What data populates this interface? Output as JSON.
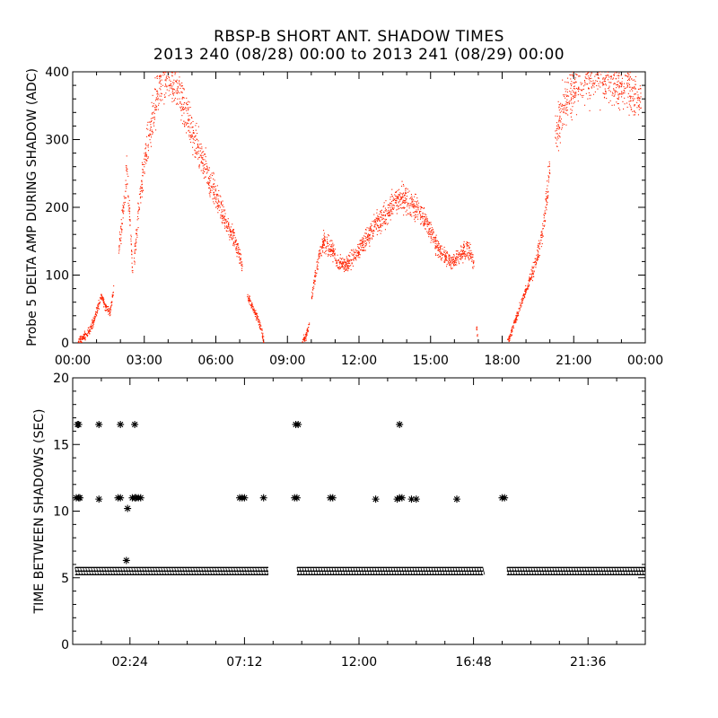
{
  "header": {
    "title": "RBSP-B SHORT ANT. SHADOW TIMES",
    "subtitle": "2013 240 (08/28) 00:00 to 2013 241 (08/29) 00:00"
  },
  "chart_data": [
    {
      "type": "scatter",
      "ylabel": "Probe 5 DELTA AMP DURING SHADOW (ADC)",
      "x_unit": "hours",
      "xlim": [
        0,
        24
      ],
      "ylim": [
        0,
        400
      ],
      "xticks": [
        "00:00",
        "03:00",
        "06:00",
        "09:00",
        "12:00",
        "15:00",
        "18:00",
        "21:00",
        "00:00"
      ],
      "yticks": [
        "0",
        "100",
        "200",
        "300",
        "400"
      ],
      "marker_color": "#ff2200",
      "segments": [
        {
          "x": [
            0.2,
            0.6,
            0.9,
            1.05,
            1.2,
            1.35,
            1.55,
            1.7
          ],
          "y": [
            0,
            15,
            35,
            55,
            70,
            55,
            45,
            80
          ]
        },
        {
          "x": [
            1.9,
            2.1,
            2.25,
            2.4,
            2.5
          ],
          "y": [
            130,
            200,
            255,
            170,
            100
          ]
        },
        {
          "x": [
            2.55,
            2.75,
            3.0,
            3.3,
            3.6,
            3.9,
            4.2,
            4.5,
            4.8,
            5.1,
            5.4,
            5.7,
            6.0,
            6.3,
            6.6,
            6.9,
            7.1
          ],
          "y": [
            120,
            200,
            270,
            330,
            370,
            395,
            385,
            365,
            330,
            300,
            270,
            245,
            215,
            190,
            165,
            140,
            110
          ]
        },
        {
          "x": [
            7.3,
            7.5,
            7.7,
            7.85,
            8.0
          ],
          "y": [
            70,
            55,
            40,
            25,
            0
          ]
        },
        {
          "x": [
            9.6,
            9.8,
            9.9
          ],
          "y": [
            0,
            15,
            30
          ]
        },
        {
          "x": [
            10.0,
            10.25,
            10.5,
            10.8,
            11.1,
            11.4,
            11.8,
            12.2,
            12.6,
            13.0,
            13.4,
            13.8,
            14.2,
            14.6,
            15.0,
            15.3,
            15.6,
            15.9,
            16.2,
            16.5,
            16.8
          ],
          "y": [
            70,
            120,
            150,
            140,
            120,
            115,
            130,
            150,
            170,
            185,
            205,
            215,
            205,
            190,
            165,
            140,
            125,
            120,
            130,
            140,
            120
          ]
        },
        {
          "x": [
            16.9,
            16.95
          ],
          "y": [
            30,
            10
          ]
        },
        {
          "x": [
            18.2,
            18.5,
            18.8,
            19.1,
            19.4,
            19.7,
            19.9,
            20.0
          ],
          "y": [
            0,
            30,
            60,
            90,
            120,
            170,
            230,
            270
          ]
        },
        {
          "x": [
            20.2,
            20.5,
            20.9,
            21.3,
            21.8,
            22.3,
            22.8,
            23.3,
            23.8
          ],
          "y": [
            300,
            345,
            375,
            390,
            400,
            395,
            385,
            375,
            360
          ]
        }
      ]
    },
    {
      "type": "scatter",
      "ylabel": "TIME BETWEEN SHADOWS (SEC)",
      "x_unit": "hours",
      "xlim": [
        0,
        24
      ],
      "ylim": [
        0,
        20
      ],
      "xticks": [
        "02:24",
        "07:12",
        "12:00",
        "16:48",
        "21:36"
      ],
      "yticks": [
        "0",
        "5",
        "10",
        "15",
        "20"
      ],
      "marker": "*",
      "baseline": {
        "y": 5.5,
        "ranges": [
          [
            0.1,
            8.2
          ],
          [
            9.4,
            17.2
          ],
          [
            18.2,
            24
          ]
        ]
      },
      "points": {
        "x": [
          0.2,
          0.25,
          1.1,
          2.0,
          2.6,
          9.35,
          9.45,
          13.7,
          0.15,
          0.25,
          0.3,
          1.1,
          1.9,
          2.0,
          2.5,
          2.6,
          2.65,
          2.75,
          2.85,
          7.0,
          7.1,
          7.2,
          8.0,
          9.3,
          9.4,
          10.8,
          10.9,
          12.7,
          13.6,
          13.7,
          13.8,
          14.2,
          14.4,
          16.1,
          18.0,
          18.1,
          2.3,
          2.25
        ],
        "y": [
          16.5,
          16.5,
          16.5,
          16.5,
          16.5,
          16.5,
          16.5,
          16.5,
          11.0,
          11.0,
          11.0,
          10.9,
          11.0,
          11.0,
          11.0,
          11.0,
          11.0,
          11.0,
          11.0,
          11.0,
          11.0,
          11.0,
          11.0,
          11.0,
          11.0,
          11.0,
          11.0,
          10.9,
          10.9,
          11.0,
          11.0,
          10.9,
          10.9,
          10.9,
          11.0,
          11.0,
          10.2,
          6.3
        ]
      }
    }
  ]
}
